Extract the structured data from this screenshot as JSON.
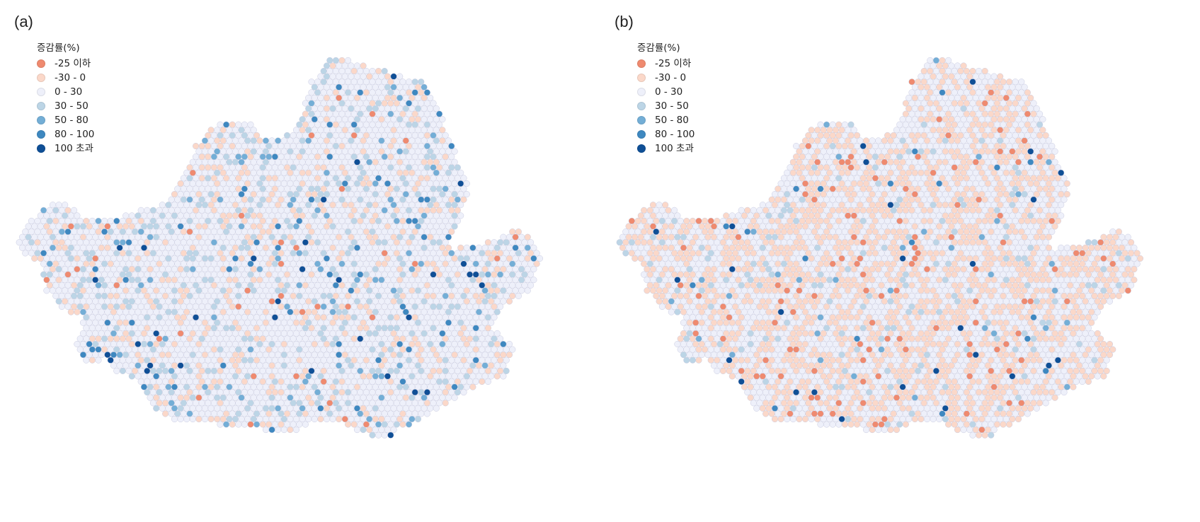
{
  "panels": [
    {
      "id": "a",
      "label": "(a)",
      "legend": {
        "title": "증감률(%)",
        "items": [
          {
            "label": "-25 이하",
            "color": "#ef8a6f"
          },
          {
            "label": "-30 - 0",
            "color": "#fbd8c9"
          },
          {
            "label": "0 - 30",
            "color": "#eef0fa"
          },
          {
            "label": "30 - 50",
            "color": "#bcd5e6"
          },
          {
            "label": "50 - 80",
            "color": "#73aed6"
          },
          {
            "label": "80 - 100",
            "color": "#3e88c0"
          },
          {
            "label": "100 초과",
            "color": "#0f4f96"
          }
        ]
      }
    },
    {
      "id": "b",
      "label": "(b)",
      "legend": {
        "title": "증감률(%)",
        "items": [
          {
            "label": "-25 이하",
            "color": "#ef8a6f"
          },
          {
            "label": "-30 - 0",
            "color": "#fbd8c9"
          },
          {
            "label": "0 - 30",
            "color": "#eef0fa"
          },
          {
            "label": "30 - 50",
            "color": "#bcd5e6"
          },
          {
            "label": "50 - 80",
            "color": "#73aed6"
          },
          {
            "label": "80 - 100",
            "color": "#3e88c0"
          },
          {
            "label": "100 초과",
            "color": "#0f4f96"
          }
        ]
      }
    }
  ]
}
